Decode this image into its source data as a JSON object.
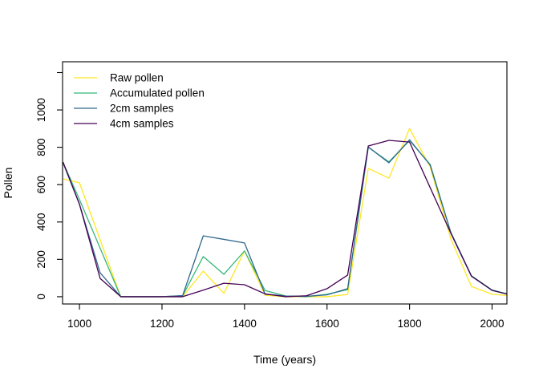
{
  "chart_data": {
    "type": "line",
    "title": "",
    "xlabel": "Time (years)",
    "ylabel": "Pollen",
    "grid": false,
    "legend_position": "top-left",
    "xlim": [
      959,
      2036
    ],
    "ylim": [
      -39,
      1258
    ],
    "x_ticks": [
      1000,
      1200,
      1400,
      1600,
      1800,
      2000
    ],
    "y_ticks": [
      {
        "value": 0,
        "label": "0"
      },
      {
        "value": 200,
        "label": "200"
      },
      {
        "value": 400,
        "label": "400"
      },
      {
        "value": 600,
        "label": "600"
      },
      {
        "value": 800,
        "label": "800"
      },
      {
        "value": 1000,
        "label": "1000"
      },
      {
        "value": 1200,
        "label": ""
      }
    ],
    "x": [
      960,
      1000,
      1050,
      1100,
      1150,
      1200,
      1250,
      1300,
      1350,
      1400,
      1450,
      1500,
      1550,
      1600,
      1650,
      1700,
      1750,
      1800,
      1850,
      1900,
      1950,
      2000,
      2040
    ],
    "series": [
      {
        "name": "Raw pollen",
        "color": "#FDE725",
        "values": [
          631,
          610,
          305,
          0,
          0,
          0,
          0,
          137,
          18,
          245,
          8,
          0,
          0,
          0,
          12,
          687,
          635,
          900,
          695,
          310,
          55,
          13,
          6
        ]
      },
      {
        "name": "Accumulated pollen",
        "color": "#35B779",
        "values": [
          720,
          520,
          260,
          0,
          0,
          0,
          5,
          215,
          120,
          245,
          33,
          4,
          0,
          13,
          38,
          800,
          722,
          836,
          708,
          345,
          112,
          36,
          13
        ]
      },
      {
        "name": "2cm samples",
        "color": "#31688E",
        "values": [
          718,
          495,
          128,
          0,
          0,
          0,
          6,
          326,
          307,
          288,
          13,
          4,
          2,
          10,
          43,
          802,
          717,
          840,
          705,
          343,
          110,
          34,
          12
        ]
      },
      {
        "name": "4cm samples",
        "color": "#440154",
        "values": [
          721,
          495,
          98,
          0,
          0,
          0,
          0,
          35,
          72,
          64,
          15,
          0,
          5,
          43,
          116,
          807,
          837,
          828,
          584,
          340,
          110,
          34,
          12
        ]
      }
    ]
  }
}
